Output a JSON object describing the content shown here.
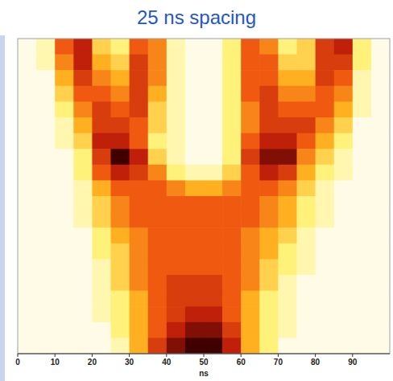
{
  "chart_data": {
    "type": "heatmap",
    "title": "25 ns spacing",
    "x_label": "ns",
    "xlim": [
      0,
      100
    ],
    "xticks": [
      0,
      10,
      20,
      30,
      40,
      50,
      60,
      70,
      80,
      90
    ],
    "tick_labels": "x",
    "x": [
      2.5,
      7.5,
      12.5,
      17.5,
      22.5,
      27.5,
      32.5,
      37.5,
      42.5,
      47.5,
      52.5,
      57.5,
      62.5,
      67.5,
      72.5,
      77.5,
      82.5,
      87.5,
      92.5,
      97.5
    ],
    "color_range": [
      0,
      10
    ],
    "cells": [
      [
        0,
        1,
        6,
        8,
        3,
        2,
        6,
        5,
        1,
        0,
        0,
        2,
        6,
        5,
        2,
        3,
        7,
        8,
        2,
        0
      ],
      [
        0,
        1,
        5,
        8,
        4,
        3,
        7,
        5,
        1,
        0,
        0,
        2,
        6,
        6,
        3,
        3,
        7,
        7,
        2,
        0
      ],
      [
        0,
        0,
        4,
        7,
        5,
        4,
        7,
        5,
        1,
        0,
        0,
        2,
        6,
        6,
        4,
        4,
        7,
        6,
        1,
        0
      ],
      [
        0,
        0,
        3,
        6,
        6,
        5,
        7,
        4,
        1,
        0,
        0,
        2,
        6,
        7,
        5,
        5,
        6,
        5,
        1,
        0
      ],
      [
        0,
        0,
        2,
        5,
        7,
        6,
        7,
        3,
        1,
        0,
        0,
        2,
        5,
        7,
        6,
        6,
        6,
        4,
        1,
        0
      ],
      [
        0,
        0,
        1,
        4,
        7,
        7,
        6,
        3,
        1,
        0,
        0,
        2,
        5,
        7,
        7,
        7,
        5,
        3,
        0,
        0
      ],
      [
        0,
        0,
        1,
        3,
        8,
        8,
        6,
        2,
        1,
        0,
        0,
        2,
        6,
        8,
        8,
        6,
        4,
        2,
        0,
        0
      ],
      [
        0,
        0,
        0,
        2,
        7,
        10,
        8,
        3,
        1,
        0,
        0,
        2,
        7,
        9,
        9,
        5,
        3,
        1,
        0,
        0
      ],
      [
        0,
        0,
        0,
        2,
        6,
        8,
        7,
        5,
        2,
        1,
        1,
        3,
        6,
        8,
        7,
        4,
        2,
        1,
        0,
        0
      ],
      [
        0,
        0,
        0,
        1,
        4,
        6,
        6,
        6,
        5,
        4,
        4,
        5,
        6,
        6,
        5,
        3,
        1,
        0,
        0,
        0
      ],
      [
        0,
        0,
        0,
        1,
        3,
        5,
        6,
        6,
        6,
        6,
        6,
        6,
        6,
        5,
        4,
        2,
        1,
        0,
        0,
        0
      ],
      [
        0,
        0,
        0,
        1,
        3,
        5,
        6,
        6,
        6,
        6,
        6,
        6,
        6,
        5,
        4,
        2,
        1,
        0,
        0,
        0
      ],
      [
        0,
        0,
        0,
        0,
        2,
        4,
        5,
        6,
        6,
        6,
        6,
        6,
        5,
        4,
        3,
        1,
        0,
        0,
        0,
        0
      ],
      [
        0,
        0,
        0,
        0,
        2,
        3,
        5,
        6,
        6,
        6,
        6,
        6,
        5,
        4,
        2,
        1,
        0,
        0,
        0,
        0
      ],
      [
        0,
        0,
        0,
        0,
        1,
        3,
        5,
        6,
        6,
        6,
        6,
        6,
        5,
        3,
        2,
        1,
        0,
        0,
        0,
        0
      ],
      [
        0,
        0,
        0,
        0,
        1,
        3,
        5,
        6,
        7,
        7,
        7,
        6,
        5,
        3,
        1,
        0,
        0,
        0,
        0,
        0
      ],
      [
        0,
        0,
        0,
        0,
        1,
        2,
        4,
        6,
        7,
        7,
        7,
        6,
        4,
        2,
        1,
        0,
        0,
        0,
        0,
        0
      ],
      [
        0,
        0,
        0,
        0,
        1,
        2,
        4,
        6,
        7,
        8,
        8,
        6,
        4,
        2,
        1,
        0,
        0,
        0,
        0,
        0
      ],
      [
        0,
        0,
        0,
        0,
        0,
        2,
        4,
        6,
        8,
        9,
        9,
        7,
        4,
        2,
        1,
        0,
        0,
        0,
        0,
        0
      ],
      [
        0,
        0,
        0,
        0,
        0,
        1,
        4,
        7,
        9,
        10,
        10,
        8,
        4,
        2,
        0,
        0,
        0,
        0,
        0,
        0
      ]
    ]
  }
}
